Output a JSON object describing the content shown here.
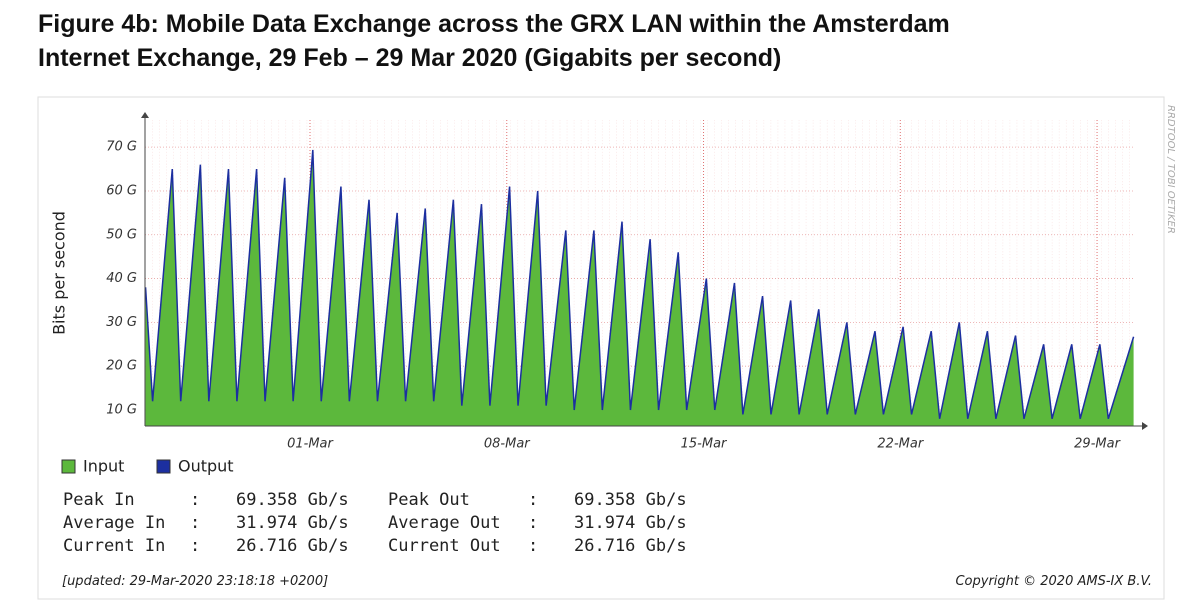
{
  "chart_data": {
    "type": "area",
    "title": "Figure 4b: Mobile Data Exchange across the GRX LAN within the Amsterdam",
    "title_line2": "Internet Exchange, 29 Feb – 29 Mar 2020 (Gigabits per second)",
    "ylabel": "Bits per second",
    "watermark": "RRDTOOL / TOBI OETIKER",
    "x": [
      -5.85,
      -5.6,
      -4.9,
      -4.6,
      -3.9,
      -3.6,
      -2.9,
      -2.6,
      -1.9,
      -1.6,
      -0.9,
      -0.6,
      0.1,
      0.4,
      1.1,
      1.4,
      2.1,
      2.4,
      3.1,
      3.4,
      4.1,
      4.4,
      5.1,
      5.4,
      6.1,
      6.4,
      7.1,
      7.4,
      8.1,
      8.4,
      9.1,
      9.4,
      10.1,
      10.4,
      11.1,
      11.4,
      12.1,
      12.4,
      13.1,
      13.4,
      14.1,
      14.4,
      15.1,
      15.4,
      16.1,
      16.4,
      17.1,
      17.4,
      18.1,
      18.4,
      19.1,
      19.4,
      20.1,
      20.4,
      21.1,
      21.4,
      22.1,
      22.4,
      23.1,
      23.4,
      24.1,
      24.4,
      25.1,
      25.4,
      26.1,
      26.4,
      27.1,
      27.4,
      28.1,
      28.4,
      29.3
    ],
    "series": [
      {
        "name": "Input",
        "color": "#5cb83c",
        "values": [
          38,
          12,
          65,
          12,
          66,
          12,
          65,
          12,
          65,
          12,
          63,
          12,
          69.358,
          12,
          61,
          12,
          58,
          12,
          55,
          12,
          56,
          12,
          58,
          11,
          57,
          11,
          61,
          11,
          60,
          11,
          51,
          10,
          51,
          10,
          53,
          10,
          49,
          10,
          46,
          10,
          40,
          10,
          39,
          9,
          36,
          9,
          35,
          9,
          33,
          9,
          30,
          9,
          28,
          9,
          29,
          9,
          28,
          8,
          30,
          8,
          28,
          8,
          27,
          8,
          25,
          8,
          25,
          8,
          25,
          8,
          26.716
        ]
      },
      {
        "name": "Output",
        "color": "#1c2fa0",
        "values": [
          38,
          12,
          65,
          12,
          66,
          12,
          65,
          12,
          65,
          12,
          63,
          12,
          69.358,
          12,
          61,
          12,
          58,
          12,
          55,
          12,
          56,
          12,
          58,
          11,
          57,
          11,
          61,
          11,
          60,
          11,
          51,
          10,
          51,
          10,
          53,
          10,
          49,
          10,
          46,
          10,
          40,
          10,
          39,
          9,
          36,
          9,
          35,
          9,
          33,
          9,
          30,
          9,
          28,
          9,
          29,
          9,
          28,
          8,
          30,
          8,
          28,
          8,
          27,
          8,
          25,
          8,
          25,
          8,
          25,
          8,
          26.716
        ]
      }
    ],
    "xlim": [
      -5.87,
      29.35
    ],
    "xticks": [
      {
        "value": 0,
        "label": "01-Mar"
      },
      {
        "value": 7,
        "label": "08-Mar"
      },
      {
        "value": 14,
        "label": "15-Mar"
      },
      {
        "value": 21,
        "label": "22-Mar"
      },
      {
        "value": 28,
        "label": "29-Mar"
      }
    ],
    "ylim": [
      6.35,
      76.2
    ],
    "yticks": [
      {
        "value": 10,
        "label": "10 G"
      },
      {
        "value": 20,
        "label": "20 G"
      },
      {
        "value": 30,
        "label": "30 G"
      },
      {
        "value": 40,
        "label": "40 G"
      },
      {
        "value": 50,
        "label": "50 G"
      },
      {
        "value": 60,
        "label": "60 G"
      },
      {
        "value": 70,
        "label": "70 G"
      }
    ],
    "grid": true,
    "stats": [
      [
        "Peak In",
        ":",
        "69.358 Gb/s",
        "Peak Out",
        ":",
        "69.358 Gb/s"
      ],
      [
        "Average In",
        ":",
        "31.974 Gb/s",
        "Average Out",
        ":",
        "31.974 Gb/s"
      ],
      [
        "Current In",
        ":",
        "26.716 Gb/s",
        "Current Out",
        ":",
        "26.716 Gb/s"
      ]
    ],
    "updated": "[updated: 29-Mar-2020 23:18:18 +0200]",
    "copyright": "Copyright © 2020 AMS-IX B.V."
  }
}
